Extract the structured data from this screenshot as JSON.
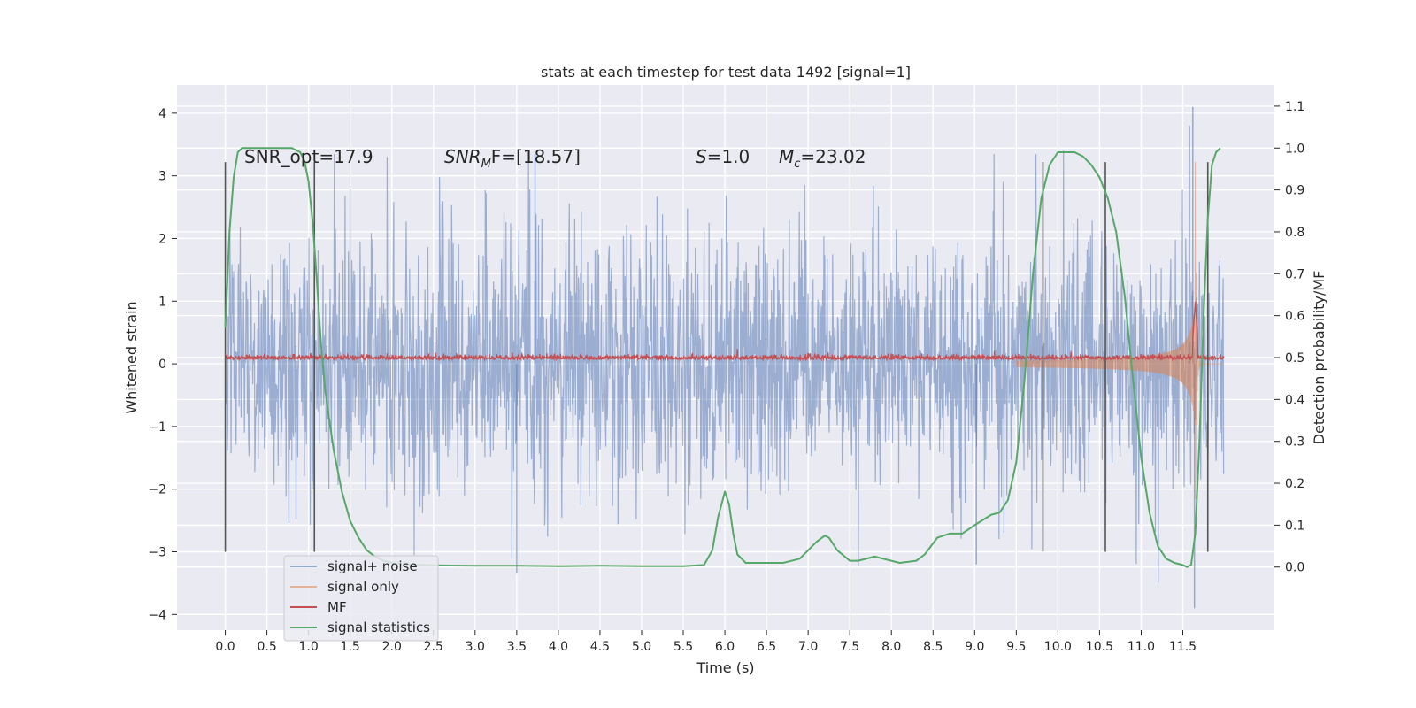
{
  "chart_data": {
    "type": "line",
    "title": "stats at each timestep for test data 1492 [signal=1]",
    "xlabel": "Time (s)",
    "ylabel": "Whitened strain",
    "y2label": "Detection probability/MF",
    "xlim": [
      -0.58,
      12.6
    ],
    "ylim": [
      -4.25,
      4.45
    ],
    "y2lim": [
      -0.1505,
      1.1505
    ],
    "xticks": [
      "0.0",
      "0.5",
      "1.0",
      "1.5",
      "2.0",
      "2.5",
      "3.0",
      "3.5",
      "4.0",
      "4.5",
      "5.0",
      "5.5",
      "6.0",
      "6.5",
      "7.0",
      "7.5",
      "8.0",
      "8.5",
      "9.0",
      "9.5",
      "10.0",
      "10.5",
      "11.0",
      "11.5"
    ],
    "yticks": [
      "4",
      "3",
      "2",
      "1",
      "0",
      "−1",
      "−2",
      "−3",
      "−4"
    ],
    "y2ticks": [
      "1.1",
      "1.0",
      "0.9",
      "0.8",
      "0.7",
      "0.6",
      "0.5",
      "0.4",
      "0.3",
      "0.2",
      "0.1",
      "0.0"
    ],
    "grid": true,
    "legend_position": "lower-left",
    "annotations": {
      "snr_opt": "SNR_opt=17.9",
      "snr_mf_name": "SNR",
      "snr_mf_sub": "M",
      "snr_mf_rest": "F=[18.57]",
      "s_name": "S",
      "s_value": "=1.0",
      "mc_name": "M",
      "mc_sub": "c",
      "mc_value": "=23.02"
    },
    "vertical_markers": {
      "x": [
        0.0,
        1.07,
        9.82,
        10.57,
        11.8
      ],
      "y_range": [
        -3.0,
        3.22
      ]
    },
    "series": [
      {
        "name": "signal+ noise",
        "color": "#4c72b0",
        "style": "noise band, amplitude about ±2.5 with spikes to 4.1",
        "x_range": [
          0.0,
          11.99
        ]
      },
      {
        "name": "signal only",
        "color": "#dd8452",
        "style": "chirp growing from ±0.1 at 9.5 s to peak 3.3 at 11.65 s",
        "x_range": [
          9.5,
          11.99
        ]
      },
      {
        "name": "MF",
        "color": "#c44e52",
        "style": "near 0.07 with peak 1.0 at 11.65 s",
        "x_range": [
          0.0,
          11.99
        ]
      },
      {
        "name": "signal statistics",
        "color": "#55a868",
        "axis": "right",
        "x": [
          0.0,
          0.05,
          0.1,
          0.15,
          0.2,
          0.3,
          0.4,
          0.5,
          0.6,
          0.7,
          0.8,
          0.9,
          0.95,
          1.0,
          1.05,
          1.1,
          1.15,
          1.2,
          1.3,
          1.4,
          1.5,
          1.6,
          1.7,
          1.8,
          1.9,
          2.0,
          2.2,
          2.5,
          3.0,
          3.5,
          4.0,
          4.5,
          5.0,
          5.5,
          5.75,
          5.85,
          5.92,
          6.0,
          6.05,
          6.1,
          6.15,
          6.25,
          6.4,
          6.7,
          6.9,
          7.0,
          7.1,
          7.2,
          7.25,
          7.35,
          7.5,
          7.6,
          7.8,
          7.9,
          8.1,
          8.3,
          8.4,
          8.55,
          8.7,
          8.85,
          9.0,
          9.2,
          9.3,
          9.4,
          9.5,
          9.6,
          9.7,
          9.8,
          9.9,
          10.0,
          10.2,
          10.3,
          10.4,
          10.5,
          10.6,
          10.7,
          10.8,
          10.9,
          11.0,
          11.1,
          11.2,
          11.3,
          11.4,
          11.5,
          11.55,
          11.6,
          11.65,
          11.7,
          11.75,
          11.8,
          11.85,
          11.9,
          11.95
        ],
        "y": [
          0.57,
          0.8,
          0.93,
          0.99,
          1.0,
          1.0,
          1.0,
          1.0,
          1.0,
          1.0,
          1.0,
          0.99,
          0.97,
          0.92,
          0.82,
          0.68,
          0.53,
          0.42,
          0.28,
          0.18,
          0.11,
          0.07,
          0.04,
          0.025,
          0.015,
          0.01,
          0.006,
          0.004,
          0.003,
          0.003,
          0.002,
          0.003,
          0.002,
          0.002,
          0.005,
          0.04,
          0.12,
          0.18,
          0.15,
          0.08,
          0.03,
          0.01,
          0.01,
          0.01,
          0.02,
          0.04,
          0.06,
          0.075,
          0.07,
          0.04,
          0.015,
          0.015,
          0.025,
          0.02,
          0.01,
          0.015,
          0.03,
          0.07,
          0.08,
          0.08,
          0.1,
          0.125,
          0.13,
          0.16,
          0.25,
          0.45,
          0.7,
          0.88,
          0.96,
          0.99,
          0.99,
          0.98,
          0.96,
          0.93,
          0.88,
          0.8,
          0.65,
          0.45,
          0.26,
          0.13,
          0.05,
          0.02,
          0.01,
          0.005,
          0.0,
          0.005,
          0.08,
          0.3,
          0.6,
          0.83,
          0.96,
          0.99,
          1.0
        ]
      }
    ]
  }
}
